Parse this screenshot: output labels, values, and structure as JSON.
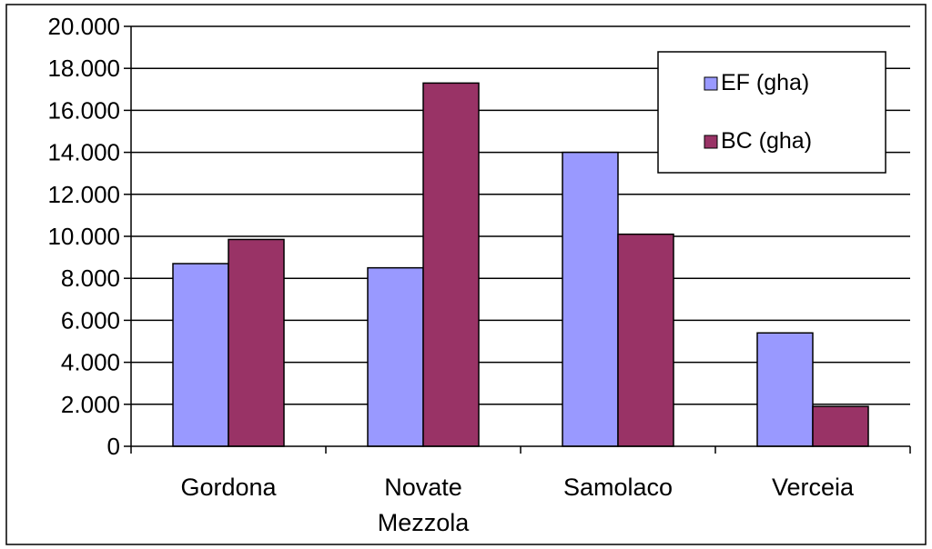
{
  "chart_data": {
    "type": "bar",
    "categories": [
      "Gordona",
      "Novate Mezzola",
      "Samolaco",
      "Verceia"
    ],
    "category_lines": [
      [
        "Gordona"
      ],
      [
        "Novate",
        "Mezzola"
      ],
      [
        "Samolaco"
      ],
      [
        "Verceia"
      ]
    ],
    "series": [
      {
        "name": "EF (gha)",
        "values": [
          8700,
          8500,
          14000,
          5400
        ],
        "color": "#9999FF"
      },
      {
        "name": "BC (gha)",
        "values": [
          9850,
          17300,
          10100,
          1900
        ],
        "color": "#993366"
      }
    ],
    "ylim": [
      0,
      20000
    ],
    "yticks": [
      {
        "value": 0,
        "label": "0"
      },
      {
        "value": 2000,
        "label": "2.000"
      },
      {
        "value": 4000,
        "label": "4.000"
      },
      {
        "value": 6000,
        "label": "6.000"
      },
      {
        "value": 8000,
        "label": "8.000"
      },
      {
        "value": 10000,
        "label": "10.000"
      },
      {
        "value": 12000,
        "label": "12.000"
      },
      {
        "value": 14000,
        "label": "14.000"
      },
      {
        "value": 16000,
        "label": "16.000"
      },
      {
        "value": 18000,
        "label": "18.000"
      },
      {
        "value": 20000,
        "label": "20.000"
      }
    ],
    "grid": true,
    "legend": "top-right",
    "title": "",
    "xlabel": "",
    "ylabel": ""
  }
}
